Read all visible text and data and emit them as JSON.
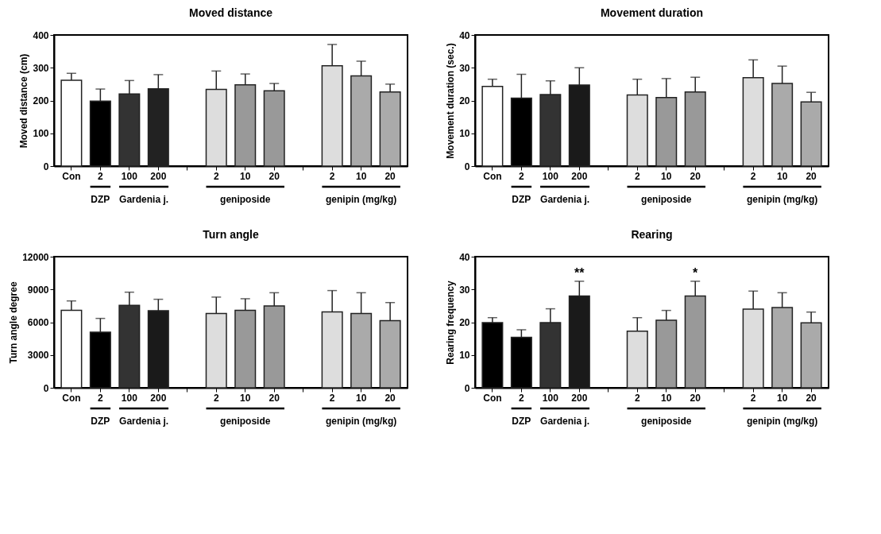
{
  "chart_data": [
    {
      "type": "bar",
      "title": "Moved distance",
      "ylabel": "Moved distance (cm)",
      "categories": [
        "Con",
        "2",
        "100",
        "200",
        null,
        "2",
        "10",
        "20",
        null,
        "2",
        "10",
        "20"
      ],
      "values": [
        262,
        198,
        220,
        236,
        null,
        234,
        248,
        230,
        null,
        306,
        275,
        226
      ],
      "errors": [
        [
          262,
          283
        ],
        [
          198,
          235
        ],
        [
          220,
          261
        ],
        [
          236,
          279
        ],
        null,
        [
          234,
          290
        ],
        [
          248,
          281
        ],
        [
          230,
          252
        ],
        null,
        [
          306,
          371
        ],
        [
          275,
          320
        ],
        [
          226,
          250
        ]
      ],
      "colors": [
        "#ffffff",
        "#000000",
        "#333333",
        "#222222",
        null,
        "#dddddd",
        "#999999",
        "#999999",
        null,
        "#dddddd",
        "#aaaaaa",
        "#aaaaaa"
      ],
      "ylim": [
        0,
        400
      ],
      "yticks": [
        0,
        100,
        200,
        300,
        400
      ],
      "annotations": [
        "DZP",
        "Gardenia j.",
        "geniposide",
        "genipin (mg/kg)"
      ]
    },
    {
      "type": "bar",
      "title": "Movement duration",
      "ylabel": "Movement duration (sec.)",
      "categories": [
        "Con",
        "2",
        "100",
        "200",
        null,
        "2",
        "10",
        "20",
        null,
        "2",
        "10",
        "20"
      ],
      "values": [
        24.3,
        20.7,
        21.8,
        24.7,
        null,
        21.7,
        20.9,
        22.6,
        null,
        27,
        25.2,
        19.6
      ],
      "errors": [
        [
          24.3,
          26.5
        ],
        [
          20.7,
          28
        ],
        [
          21.8,
          26
        ],
        [
          24.7,
          30
        ],
        null,
        [
          21.7,
          26.5
        ],
        [
          20.9,
          26.7
        ],
        [
          22.6,
          27.1
        ],
        null,
        [
          27,
          32.4
        ],
        [
          25.2,
          30.5
        ],
        [
          19.6,
          22.5
        ]
      ],
      "colors": [
        "#ffffff",
        "#000000",
        "#333333",
        "#1a1a1a",
        null,
        "#dddddd",
        "#999999",
        "#999999",
        null,
        "#dddddd",
        "#aaaaaa",
        "#aaaaaa"
      ],
      "ylim": [
        0,
        40
      ],
      "yticks": [
        0,
        10,
        20,
        30,
        40
      ],
      "annotations": [
        "DZP",
        "Gardenia j.",
        "geniposide",
        "genipin (mg/kg)"
      ]
    },
    {
      "type": "bar",
      "title": "Turn angle",
      "ylabel": "Turn angle degree",
      "categories": [
        "Con",
        "2",
        "100",
        "200",
        null,
        "2",
        "10",
        "20",
        null,
        "2",
        "10",
        "20"
      ],
      "values": [
        7100,
        5100,
        7550,
        7050,
        null,
        6800,
        7100,
        7500,
        null,
        6950,
        6800,
        6150
      ],
      "errors": [
        [
          7100,
          7950
        ],
        [
          5100,
          6350
        ],
        [
          7550,
          8750
        ],
        [
          7050,
          8100
        ],
        null,
        [
          6800,
          8300
        ],
        [
          7100,
          8150
        ],
        [
          7500,
          8700
        ],
        null,
        [
          6950,
          8900
        ],
        [
          6800,
          8700
        ],
        [
          6150,
          7800
        ]
      ],
      "colors": [
        "#ffffff",
        "#000000",
        "#333333",
        "#1a1a1a",
        null,
        "#dddddd",
        "#999999",
        "#999999",
        null,
        "#dddddd",
        "#aaaaaa",
        "#aaaaaa"
      ],
      "ylim": [
        0,
        12000
      ],
      "yticks": [
        0,
        3000,
        6000,
        9000,
        12000
      ],
      "annotations": [
        "DZP",
        "Gardenia j.",
        "geniposide",
        "genipin (mg/kg)"
      ]
    },
    {
      "type": "bar",
      "title": "Rearing",
      "ylabel": "Rearing frequency",
      "categories": [
        "Con",
        "2",
        "100",
        "200",
        null,
        "2",
        "10",
        "20",
        null,
        "2",
        "10",
        "20"
      ],
      "values": [
        19.9,
        15.4,
        19.9,
        28,
        null,
        17.3,
        20.6,
        28,
        null,
        24,
        24.5,
        19.8
      ],
      "errors": [
        [
          19.9,
          21.4
        ],
        [
          15.4,
          17.7
        ],
        [
          19.9,
          24.1
        ],
        [
          28,
          32.5
        ],
        null,
        [
          17.3,
          21.4
        ],
        [
          20.6,
          23.6
        ],
        [
          28,
          32.5
        ],
        null,
        [
          24,
          29.5
        ],
        [
          24.5,
          29
        ],
        [
          19.8,
          23.1
        ]
      ],
      "colors": [
        "#000000",
        "#000000",
        "#333333",
        "#1a1a1a",
        null,
        "#dddddd",
        "#999999",
        "#999999",
        null,
        "#dddddd",
        "#aaaaaa",
        "#aaaaaa"
      ],
      "ylim": [
        0,
        40
      ],
      "yticks": [
        0,
        10,
        20,
        30,
        40
      ],
      "annotations": [
        "DZP",
        "Gardenia j.",
        "geniposide",
        "genipin (mg/kg)",
        "**",
        "*"
      ]
    }
  ]
}
